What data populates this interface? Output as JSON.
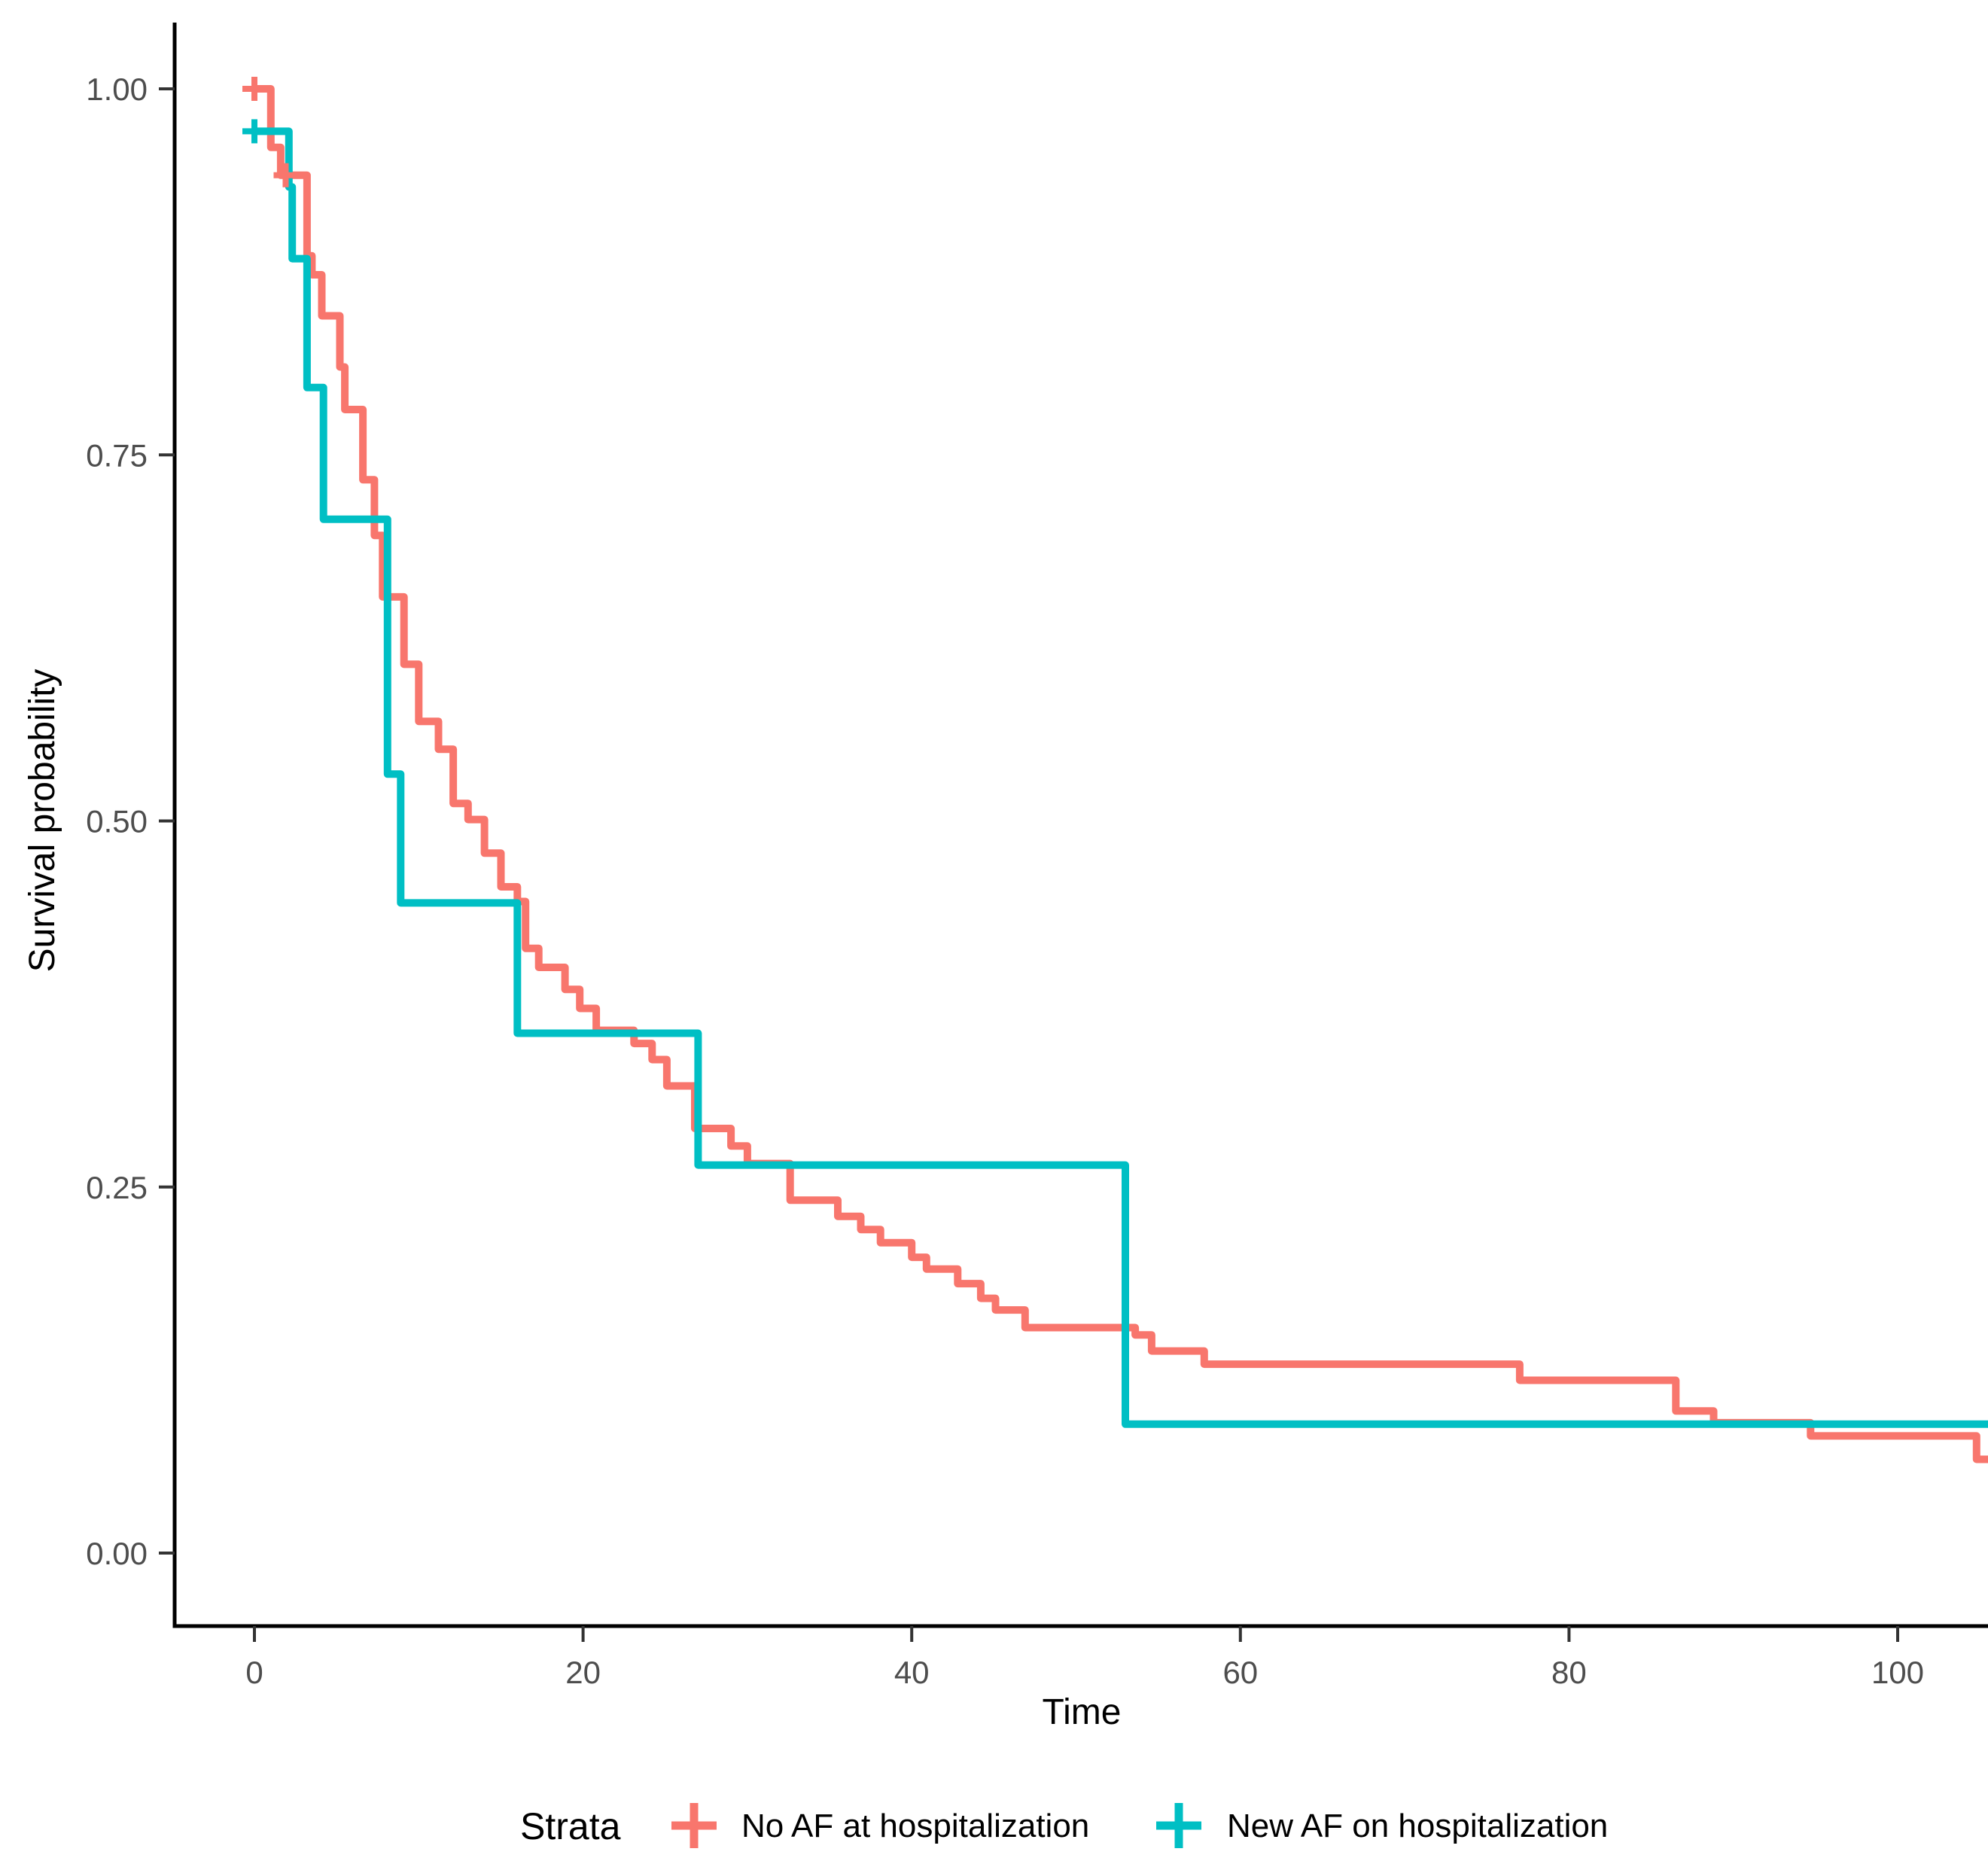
{
  "chart_data": {
    "type": "line",
    "subtype": "kaplan-meier-step",
    "title": "",
    "xlabel": "Time",
    "ylabel": "Survival probability",
    "xlim": [
      -4.9,
      105.5
    ],
    "ylim": [
      -0.05,
      1.045
    ],
    "grid": false,
    "legend_position": "bottom",
    "legend_title": "Strata",
    "x_ticks": {
      "values": [
        0,
        20,
        40,
        60,
        80,
        100
      ],
      "labels": [
        "0",
        "20",
        "40",
        "60",
        "80",
        "100"
      ]
    },
    "y_ticks": {
      "values": [
        0.0,
        0.25,
        0.5,
        0.75,
        1.0
      ],
      "labels": [
        "0.00",
        "0.25",
        "0.50",
        "0.75",
        "1.00"
      ]
    },
    "series": [
      {
        "name": "No AF at hospitalization",
        "color": "#F8766D",
        "steps": [
          [
            0,
            1.0
          ],
          [
            1.0,
            0.96
          ],
          [
            1.6,
            0.941
          ],
          [
            3.2,
            0.886
          ],
          [
            3.5,
            0.873
          ],
          [
            4.1,
            0.845
          ],
          [
            5.2,
            0.81
          ],
          [
            5.5,
            0.781
          ],
          [
            6.6,
            0.733
          ],
          [
            7.3,
            0.695
          ],
          [
            7.8,
            0.653
          ],
          [
            9.1,
            0.607
          ],
          [
            10.0,
            0.568
          ],
          [
            11.2,
            0.549
          ],
          [
            12.1,
            0.512
          ],
          [
            13.0,
            0.501
          ],
          [
            14.0,
            0.478
          ],
          [
            15.0,
            0.455
          ],
          [
            16.0,
            0.445
          ],
          [
            16.5,
            0.413
          ],
          [
            17.3,
            0.4
          ],
          [
            18.9,
            0.385
          ],
          [
            19.8,
            0.372
          ],
          [
            20.8,
            0.357
          ],
          [
            23.1,
            0.348
          ],
          [
            24.2,
            0.337
          ],
          [
            25.1,
            0.319
          ],
          [
            26.8,
            0.29
          ],
          [
            29.0,
            0.278
          ],
          [
            30.0,
            0.266
          ],
          [
            32.6,
            0.241
          ],
          [
            35.5,
            0.23
          ],
          [
            36.9,
            0.221
          ],
          [
            38.1,
            0.212
          ],
          [
            40.0,
            0.202
          ],
          [
            40.9,
            0.194
          ],
          [
            42.8,
            0.184
          ],
          [
            44.2,
            0.174
          ],
          [
            45.1,
            0.166
          ],
          [
            46.9,
            0.154
          ],
          [
            53.6,
            0.149
          ],
          [
            54.6,
            0.138
          ],
          [
            57.8,
            0.129
          ],
          [
            77.0,
            0.118
          ],
          [
            86.5,
            0.097
          ],
          [
            88.8,
            0.089
          ],
          [
            94.7,
            0.08
          ],
          [
            104.8,
            0.064
          ],
          [
            105.5,
            0.064
          ]
        ],
        "censor_marks": [
          [
            0,
            1.0
          ],
          [
            1.9,
            0.941
          ]
        ]
      },
      {
        "name": "New AF on hospitalization",
        "color": "#00BFC4",
        "steps": [
          [
            0,
            0.971
          ],
          [
            2.1,
            0.933
          ],
          [
            2.3,
            0.884
          ],
          [
            3.2,
            0.796
          ],
          [
            4.2,
            0.706
          ],
          [
            8.1,
            0.532
          ],
          [
            8.9,
            0.444
          ],
          [
            16.0,
            0.355
          ],
          [
            27.0,
            0.265
          ],
          [
            53.0,
            0.088
          ],
          [
            105.5,
            0.088
          ]
        ],
        "censor_marks": [
          [
            0,
            0.971
          ]
        ]
      }
    ]
  },
  "colors": {
    "axis_line": "#000000",
    "tick_mark": "#333333",
    "tick_label": "#4d4d4d",
    "background": "#ffffff"
  }
}
